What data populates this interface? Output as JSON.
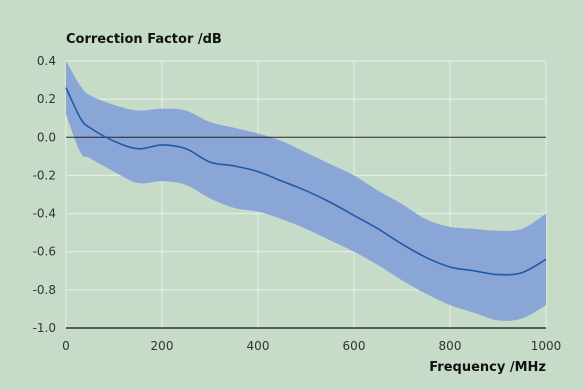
{
  "chart_data": {
    "type": "line",
    "ylabel": "Correction Factor /dB",
    "xlabel": "Frequency /MHz",
    "xlim": [
      0,
      1000
    ],
    "ylim": [
      -1.0,
      0.4
    ],
    "x_ticks": [
      0,
      200,
      400,
      600,
      800,
      1000
    ],
    "x_tick_labels": [
      "0",
      "200",
      "400",
      "600",
      "800",
      "1000"
    ],
    "y_ticks": [
      0.4,
      0.2,
      0.0,
      -0.2,
      -0.4,
      -0.6,
      -0.8,
      -1.0
    ],
    "y_tick_labels": [
      "0.4",
      "0.2",
      "0.0",
      "-0.2",
      "-0.4",
      "-0.6",
      "-0.8",
      "-1.0"
    ],
    "grid": true,
    "colors": {
      "background": "#c6dcc9",
      "grid": "#e9f1ea",
      "band": "#8aa6d6",
      "line": "#1f5aa8",
      "zero_line": "#222222"
    },
    "series": [
      {
        "x": [
          0,
          30,
          50,
          100,
          150,
          200,
          250,
          300,
          350,
          400,
          450,
          500,
          550,
          600,
          650,
          700,
          750,
          800,
          850,
          900,
          950,
          1000
        ],
        "values": [
          0.26,
          0.1,
          0.05,
          -0.02,
          -0.06,
          -0.04,
          -0.06,
          -0.13,
          -0.15,
          -0.18,
          -0.23,
          -0.28,
          -0.34,
          -0.41,
          -0.48,
          -0.56,
          -0.63,
          -0.68,
          -0.7,
          -0.72,
          -0.71,
          -0.64
        ]
      }
    ],
    "band": {
      "x": [
        0,
        30,
        50,
        100,
        150,
        200,
        250,
        300,
        350,
        400,
        450,
        500,
        550,
        600,
        650,
        700,
        750,
        800,
        850,
        900,
        950,
        1000
      ],
      "upper": [
        0.4,
        0.27,
        0.22,
        0.17,
        0.14,
        0.15,
        0.14,
        0.08,
        0.05,
        0.02,
        -0.02,
        -0.08,
        -0.14,
        -0.2,
        -0.28,
        -0.35,
        -0.43,
        -0.47,
        -0.48,
        -0.49,
        -0.48,
        -0.4
      ],
      "lower": [
        0.12,
        -0.08,
        -0.11,
        -0.18,
        -0.24,
        -0.23,
        -0.25,
        -0.32,
        -0.37,
        -0.39,
        -0.43,
        -0.48,
        -0.54,
        -0.6,
        -0.67,
        -0.75,
        -0.82,
        -0.88,
        -0.92,
        -0.96,
        -0.95,
        -0.88
      ]
    }
  }
}
